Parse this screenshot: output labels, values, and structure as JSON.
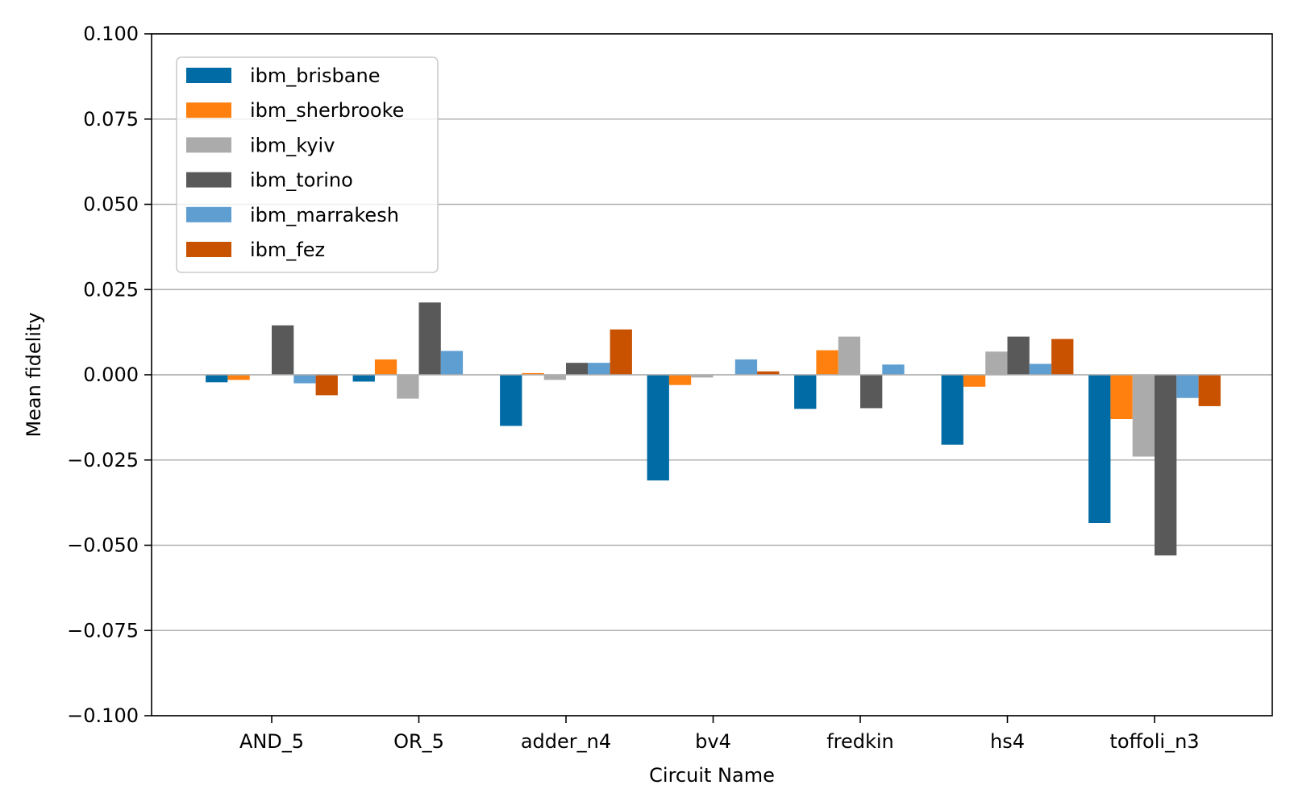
{
  "chart_data": {
    "type": "bar",
    "title": "",
    "xlabel": "Circuit Name",
    "ylabel": "Mean fidelity",
    "ylim": [
      -0.1,
      0.1
    ],
    "yticks": [
      0.1,
      0.075,
      0.05,
      0.025,
      0.0,
      -0.025,
      -0.05,
      -0.075,
      -0.1
    ],
    "ytick_labels": [
      "0.100",
      "0.075",
      "0.050",
      "0.025",
      "0.000",
      "−0.025",
      "−0.050",
      "−0.075",
      "−0.100"
    ],
    "grid": "y-major",
    "legend_position": "top-left",
    "categories": [
      "AND_5",
      "OR_5",
      "adder_n4",
      "bv4",
      "fredkin",
      "hs4",
      "toffoli_n3"
    ],
    "series": [
      {
        "name": "ibm_brisbane",
        "color": "#006ba4",
        "values": [
          -0.0022,
          -0.002,
          -0.015,
          -0.031,
          -0.01,
          -0.0205,
          -0.0435
        ]
      },
      {
        "name": "ibm_sherbrooke",
        "color": "#ff800e",
        "values": [
          -0.0015,
          0.0045,
          0.0005,
          -0.003,
          0.0072,
          -0.0035,
          -0.013
        ]
      },
      {
        "name": "ibm_kyiv",
        "color": "#ababab",
        "values": [
          0.0,
          -0.007,
          -0.0015,
          -0.0008,
          0.0112,
          0.0068,
          -0.024
        ]
      },
      {
        "name": "ibm_torino",
        "color": "#595959",
        "values": [
          0.0145,
          0.0212,
          0.0035,
          0.0,
          -0.0098,
          0.0112,
          -0.053
        ]
      },
      {
        "name": "ibm_marrakesh",
        "color": "#5f9ed1",
        "values": [
          -0.0025,
          0.007,
          0.0035,
          0.0045,
          0.003,
          0.0032,
          -0.0068
        ]
      },
      {
        "name": "ibm_fez",
        "color": "#c85200",
        "values": [
          -0.006,
          0.0,
          0.0133,
          0.001,
          0.0,
          0.0105,
          -0.0092
        ]
      }
    ]
  }
}
